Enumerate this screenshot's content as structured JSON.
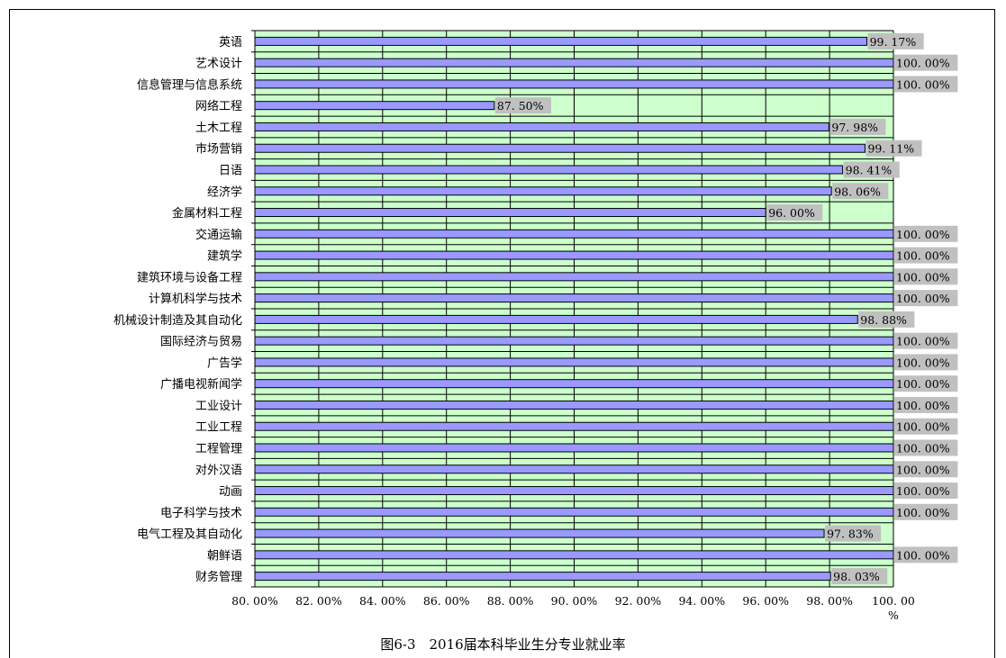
{
  "chart_data": {
    "type": "bar",
    "orientation": "horizontal",
    "categories": [
      "英语",
      "艺术设计",
      "信息管理与信息系统",
      "网络工程",
      "土木工程",
      "市场营销",
      "日语",
      "经济学",
      "金属材料工程",
      "交通运输",
      "建筑学",
      "建筑环境与设备工程",
      "计算机科学与技术",
      "机械设计制造及其自动化",
      "国际经济与贸易",
      "广告学",
      "广播电视新闻学",
      "工业设计",
      "工业工程",
      "工程管理",
      "对外汉语",
      "动画",
      "电子科学与技术",
      "电气工程及其自动化",
      "朝鲜语",
      "财务管理"
    ],
    "values": [
      99.17,
      100,
      100,
      87.5,
      97.98,
      99.11,
      98.41,
      98.06,
      96,
      100,
      100,
      100,
      100,
      98.88,
      100,
      100,
      100,
      100,
      100,
      100,
      100,
      100,
      100,
      97.83,
      100,
      98.03
    ],
    "data_labels": [
      "99. 17%",
      "100. 00%",
      "100. 00%",
      "87. 50%",
      "97. 98%",
      "99. 11%",
      "98. 41%",
      "98. 06%",
      "96. 00%",
      "100. 00%",
      "100. 00%",
      "100. 00%",
      "100. 00%",
      "98. 88%",
      "100. 00%",
      "100. 00%",
      "100. 00%",
      "100. 00%",
      "100. 00%",
      "100. 00%",
      "100. 00%",
      "100. 00%",
      "100. 00%",
      "97. 83%",
      "100. 00%",
      "98. 03%"
    ],
    "xlim": [
      80,
      100
    ],
    "x_ticks": [
      80,
      82,
      84,
      86,
      88,
      90,
      92,
      94,
      96,
      98,
      100
    ],
    "x_tick_labels": [
      "80. 00%",
      "82. 00%",
      "84. 00%",
      "86. 00%",
      "88. 00%",
      "90. 00%",
      "92. 00%",
      "94. 00%",
      "96. 00%",
      "98. 00%",
      "100. 00\n%"
    ],
    "title": "图6-3　2016届本科毕业生分专业就业率",
    "grid": true,
    "colors": {
      "plot_background": "#ccffcc",
      "bar_fill": "#9999ff",
      "bar_stroke": "#000000",
      "label_background": "#c0c0c0"
    }
  }
}
